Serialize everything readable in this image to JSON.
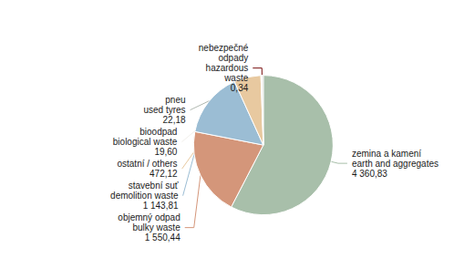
{
  "chart_data": {
    "type": "pie",
    "categories": [
      "zemina a kamení\nearth and aggregates",
      "objemný odpad\nbulky waste",
      "stavební suť\ndemolition waste",
      "ostatní / others",
      "bioodpad\nbiological waste",
      "nebezpečné\nodpady\nhazardous\nwaste",
      "pneu\nused tyres"
    ],
    "values": [
      4360.83,
      1550.44,
      1143.81,
      472.12,
      19.6,
      0.34,
      22.18
    ],
    "value_labels": [
      "4 360,83",
      "1 550,44",
      "1 143,81",
      "472,12",
      "19,60",
      "0,34",
      "22,18"
    ],
    "colors": [
      "#a8bfaa",
      "#d4967a",
      "#9bbdd4",
      "#e8c9a0",
      "#f2f0ec",
      "#7a1010",
      "#b0b8b0"
    ],
    "data_labels": true,
    "legend": false
  }
}
